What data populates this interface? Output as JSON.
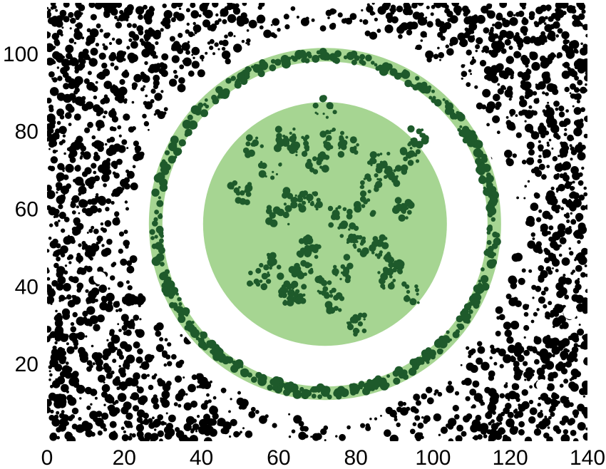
{
  "chart_data": {
    "type": "scatter",
    "title": "",
    "xlabel": "",
    "ylabel": "",
    "xlim": [
      0,
      140
    ],
    "ylim": [
      0,
      113
    ],
    "grid": false,
    "x_ticks": [
      {
        "value": 0,
        "label": "0"
      },
      {
        "value": 20,
        "label": "20"
      },
      {
        "value": 40,
        "label": "40"
      },
      {
        "value": 60,
        "label": "60"
      },
      {
        "value": 80,
        "label": "80"
      },
      {
        "value": 100,
        "label": "100"
      },
      {
        "value": 120,
        "label": "120"
      },
      {
        "value": 140,
        "label": "140"
      }
    ],
    "y_ticks": [
      {
        "value": 20,
        "label": "20"
      },
      {
        "value": 40,
        "label": "40"
      },
      {
        "value": 60,
        "label": "60"
      },
      {
        "value": 80,
        "label": "80"
      },
      {
        "value": 100,
        "label": "100"
      }
    ],
    "regions": {
      "center": [
        72,
        56
      ],
      "inner_disk_radius": 31.5,
      "ring_inner_radius": 42,
      "ring_outer_radius": 45.5,
      "clear_radius_for_black": 52
    },
    "colors": {
      "background_cluster": "#000000",
      "light_green": "#a6d592",
      "dark_green": "#1e5a2b",
      "white": "#ffffff"
    },
    "dark_clusters_in_disk": [
      [
        55,
        42
      ],
      [
        58,
        46
      ],
      [
        62,
        40
      ],
      [
        64,
        38
      ],
      [
        66,
        44
      ],
      [
        68,
        50
      ],
      [
        72,
        40
      ],
      [
        74,
        36
      ],
      [
        76,
        44
      ],
      [
        78,
        54
      ],
      [
        80,
        50
      ],
      [
        82,
        60
      ],
      [
        84,
        66
      ],
      [
        86,
        72
      ],
      [
        90,
        68
      ],
      [
        92,
        60
      ],
      [
        94,
        74
      ],
      [
        96,
        78
      ],
      [
        70,
        72
      ],
      [
        66,
        76
      ],
      [
        62,
        78
      ],
      [
        58,
        70
      ],
      [
        54,
        76
      ],
      [
        50,
        64
      ],
      [
        74,
        78
      ],
      [
        78,
        76
      ],
      [
        72,
        86
      ],
      [
        68,
        62
      ],
      [
        76,
        58
      ],
      [
        88,
        42
      ],
      [
        94,
        38
      ],
      [
        80,
        30
      ],
      [
        60,
        58
      ],
      [
        64,
        62
      ],
      [
        86,
        50
      ],
      [
        90,
        46
      ]
    ]
  }
}
